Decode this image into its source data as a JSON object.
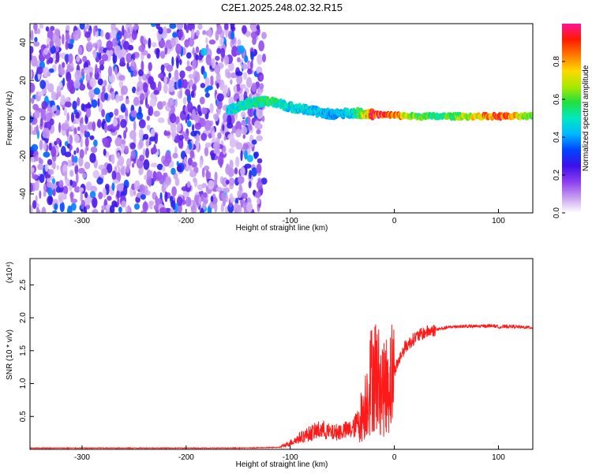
{
  "figure_title": "C2E1.2025.248.02.32.R15",
  "colorbar": {
    "label": "Normalized spectral amplitude",
    "ticks": [
      0.0,
      0.2,
      0.4,
      0.6,
      0.8
    ],
    "tick_labels": [
      "0.0",
      "0.2",
      "0.4",
      "0.6",
      "0.8"
    ],
    "range": [
      0.0,
      1.0
    ],
    "colormap": [
      "#ffffff",
      "#c59bf0",
      "#8a3cf0",
      "#3a10e8",
      "#0044ff",
      "#00b8ff",
      "#00e8c0",
      "#20e040",
      "#a8e800",
      "#ffd800",
      "#ff7a00",
      "#ff1a00",
      "#ff1493"
    ]
  },
  "chart_data": [
    {
      "type": "heatmap",
      "title": "",
      "xlabel": "Height of straight line (km)",
      "ylabel": "Frequency (Hz)",
      "xlim": [
        -350,
        133
      ],
      "ylim": [
        -50,
        50
      ],
      "xticks": [
        -300,
        -200,
        -100,
        0,
        100
      ],
      "xtick_labels": [
        "-300",
        "-200",
        "-100",
        "0",
        "100"
      ],
      "yticks": [
        -40,
        -20,
        0,
        20,
        40
      ],
      "ytick_labels": [
        "-40",
        "-20",
        "0",
        "20",
        "40"
      ],
      "noise_region_x": [
        -350,
        -125
      ],
      "noise_level": 0.3,
      "signal_trace": [
        {
          "x": -160,
          "freq": 4,
          "amp": 0.45
        },
        {
          "x": -140,
          "freq": 8,
          "amp": 0.5
        },
        {
          "x": -120,
          "freq": 9,
          "amp": 0.55
        },
        {
          "x": -100,
          "freq": 6,
          "amp": 0.45
        },
        {
          "x": -80,
          "freq": 4,
          "amp": 0.45
        },
        {
          "x": -60,
          "freq": 2,
          "amp": 0.4
        },
        {
          "x": -40,
          "freq": 3,
          "amp": 0.45
        },
        {
          "x": -20,
          "freq": 2,
          "amp": 0.9
        },
        {
          "x": 0,
          "freq": 1.5,
          "amp": 0.85
        },
        {
          "x": 20,
          "freq": 1,
          "amp": 0.6
        },
        {
          "x": 40,
          "freq": 1,
          "amp": 0.55
        },
        {
          "x": 60,
          "freq": 1,
          "amp": 0.6
        },
        {
          "x": 80,
          "freq": 1,
          "amp": 0.75
        },
        {
          "x": 100,
          "freq": 1,
          "amp": 0.9
        },
        {
          "x": 133,
          "freq": 1,
          "amp": 0.6
        }
      ]
    },
    {
      "type": "line",
      "title": "",
      "xlabel": "Height of straight line (km)",
      "ylabel": "SNR (10 * v/v)",
      "y_scale_label": "(x10⁴)",
      "xlim": [
        -350,
        133
      ],
      "ylim": [
        0,
        2.9
      ],
      "xticks": [
        -300,
        -200,
        -100,
        0,
        100
      ],
      "xtick_labels": [
        "-300",
        "-200",
        "-100",
        "0",
        "100"
      ],
      "yticks": [
        0.5,
        1.0,
        1.5,
        2.0,
        2.5
      ],
      "ytick_labels": [
        "0.5",
        "1.0",
        "1.5",
        "2.0",
        "2.5"
      ],
      "series_color": "#ff1a1a",
      "series": [
        {
          "x": [
            -350,
            -300,
            -250,
            -200,
            -150,
            -110,
            -100,
            -90,
            -80,
            -70,
            -60,
            -50,
            -40,
            -30,
            -25,
            -20,
            -15,
            -10,
            -5,
            0,
            10,
            20,
            30,
            40,
            50,
            60,
            80,
            95,
            100,
            110,
            120,
            133
          ],
          "values": [
            0.02,
            0.02,
            0.02,
            0.02,
            0.02,
            0.03,
            0.1,
            0.18,
            0.25,
            0.3,
            0.25,
            0.28,
            0.3,
            0.55,
            0.9,
            1.2,
            1.05,
            0.9,
            1.05,
            1.2,
            1.55,
            1.7,
            1.78,
            1.82,
            1.85,
            1.87,
            1.87,
            1.88,
            1.86,
            1.87,
            1.86,
            1.85
          ]
        }
      ]
    }
  ]
}
